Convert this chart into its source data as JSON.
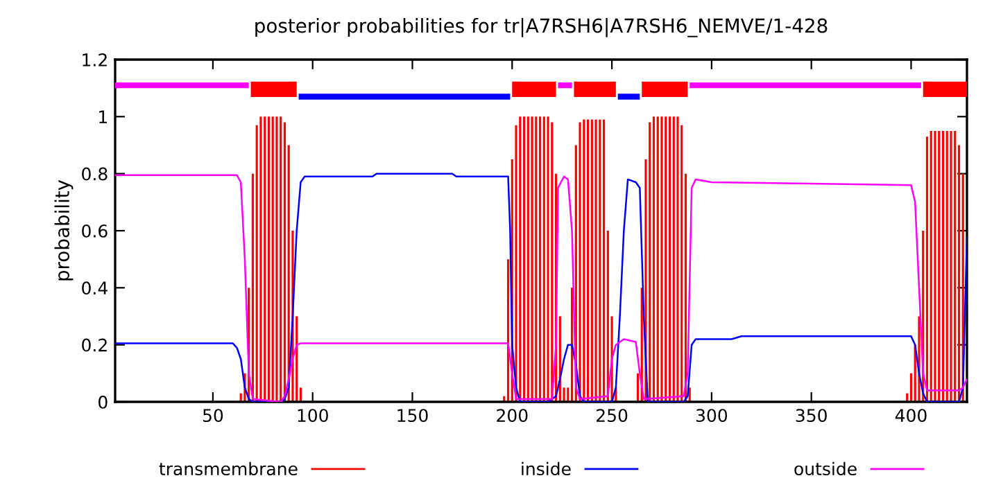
{
  "chart_data": {
    "type": "line",
    "title": "posterior probabilities for tr|A7RSH6|A7RSH6_NEMVE/1-428",
    "ylabel": "probability",
    "xlim": [
      1,
      428
    ],
    "ylim": [
      0,
      1.2
    ],
    "xticks": [
      50,
      100,
      150,
      200,
      250,
      300,
      350,
      400
    ],
    "yticks": [
      0,
      {
        "value": 0.2,
        "label": "0.2"
      },
      {
        "value": 0.4,
        "label": "0.4"
      },
      {
        "value": 0.6,
        "label": "0.6"
      },
      {
        "value": 0.8,
        "label": "0.8"
      },
      1,
      {
        "value": 1.2,
        "label": "1.2"
      }
    ],
    "grid": false,
    "legend": "bottom",
    "marker": "none",
    "line_style": "solid",
    "series": [
      {
        "name": "transmembrane",
        "type": "bar",
        "color": "#ff0000",
        "x": [
          64,
          66,
          68,
          70,
          72,
          74,
          76,
          78,
          80,
          82,
          84,
          86,
          88,
          90,
          92,
          94,
          196,
          198,
          200,
          202,
          204,
          206,
          208,
          210,
          212,
          214,
          216,
          218,
          220,
          222,
          224,
          226,
          228,
          230,
          232,
          234,
          236,
          238,
          240,
          242,
          244,
          246,
          248,
          250,
          252,
          263,
          265,
          267,
          269,
          271,
          273,
          275,
          277,
          279,
          281,
          283,
          285,
          287,
          289,
          398,
          400,
          402,
          404,
          406,
          408,
          410,
          412,
          414,
          416,
          418,
          420,
          422,
          424,
          426
        ],
        "values": [
          0.03,
          0.1,
          0.4,
          0.8,
          0.97,
          1.0,
          1.0,
          1.0,
          1.0,
          1.0,
          1.0,
          0.98,
          0.9,
          0.6,
          0.3,
          0.05,
          0.02,
          0.5,
          0.85,
          0.97,
          1.0,
          1.0,
          1.0,
          1.0,
          1.0,
          1.0,
          1.0,
          1.0,
          0.98,
          0.8,
          0.3,
          0.05,
          0.05,
          0.4,
          0.9,
          0.98,
          0.99,
          0.99,
          0.99,
          0.99,
          0.99,
          0.99,
          0.6,
          0.3,
          0.05,
          0.1,
          0.4,
          0.85,
          0.98,
          1.0,
          1.0,
          1.0,
          1.0,
          1.0,
          1.0,
          1.0,
          0.97,
          0.8,
          0.05,
          0.03,
          0.1,
          0.2,
          0.3,
          0.6,
          0.93,
          0.95,
          0.95,
          0.95,
          0.95,
          0.95,
          0.95,
          0.95,
          0.9,
          0.8
        ]
      },
      {
        "name": "inside",
        "type": "line",
        "color": "#0000ff",
        "x": [
          1,
          60,
          62,
          64,
          66,
          68,
          70,
          84,
          86,
          88,
          90,
          92,
          94,
          96,
          130,
          132,
          170,
          172,
          198,
          199,
          200,
          202,
          204,
          218,
          222,
          224,
          226,
          228,
          230,
          232,
          234,
          236,
          250,
          252,
          254,
          256,
          258,
          262,
          264,
          266,
          268,
          286,
          288,
          290,
          292,
          310,
          315,
          400,
          402,
          404,
          406,
          408,
          424,
          426,
          428
        ],
        "values": [
          0.205,
          0.205,
          0.19,
          0.15,
          0.05,
          0.01,
          0.0,
          0.0,
          0.01,
          0.05,
          0.3,
          0.6,
          0.77,
          0.79,
          0.79,
          0.8,
          0.8,
          0.79,
          0.79,
          0.6,
          0.2,
          0.05,
          0.0,
          0.0,
          0.02,
          0.08,
          0.15,
          0.2,
          0.2,
          0.13,
          0.02,
          0.0,
          0.0,
          0.05,
          0.3,
          0.6,
          0.78,
          0.77,
          0.75,
          0.3,
          0.0,
          0.0,
          0.02,
          0.2,
          0.22,
          0.22,
          0.23,
          0.23,
          0.2,
          0.1,
          0.03,
          0.0,
          0.0,
          0.05,
          0.58
        ]
      },
      {
        "name": "outside",
        "type": "line",
        "color": "#ff00ff",
        "x": [
          1,
          62,
          64,
          66,
          68,
          70,
          84,
          86,
          88,
          90,
          92,
          94,
          198,
          200,
          202,
          220,
          222,
          223,
          226,
          228,
          230,
          232,
          234,
          248,
          250,
          252,
          256,
          262,
          264,
          266,
          286,
          288,
          290,
          292,
          300,
          400,
          402,
          404,
          406,
          408,
          424,
          426,
          428
        ],
        "values": [
          0.795,
          0.795,
          0.77,
          0.5,
          0.1,
          0.01,
          0.0,
          0.02,
          0.08,
          0.15,
          0.2,
          0.205,
          0.205,
          0.1,
          0.01,
          0.01,
          0.2,
          0.75,
          0.79,
          0.78,
          0.6,
          0.05,
          0.01,
          0.02,
          0.15,
          0.2,
          0.22,
          0.21,
          0.1,
          0.01,
          0.02,
          0.1,
          0.75,
          0.78,
          0.77,
          0.76,
          0.7,
          0.4,
          0.1,
          0.04,
          0.04,
          0.05,
          0.08
        ]
      },
      {
        "color": "#ff00ff",
        "x": [
          1,
          68,
          68.5,
          223,
          230,
          230.5,
          289,
          405
        ],
        "values": [
          1.11,
          1.11,
          null,
          1.11,
          1.11,
          null,
          1.11,
          1.11
        ]
      },
      {
        "color": "#0000ff",
        "x": [
          93,
          199,
          199.5,
          253,
          264
        ],
        "values": [
          1.07,
          1.07,
          null,
          1.07,
          1.07
        ]
      },
      {
        "color": "#ff0000",
        "x": [
          69,
          92,
          92.5,
          200,
          222,
          222.5,
          231,
          252,
          252.5,
          265,
          288,
          288.5,
          406,
          428
        ],
        "values": [
          1.096,
          1.096,
          null,
          1.096,
          1.096,
          null,
          1.096,
          1.096,
          null,
          1.096,
          1.096,
          null,
          1.096,
          1.096
        ]
      }
    ]
  }
}
